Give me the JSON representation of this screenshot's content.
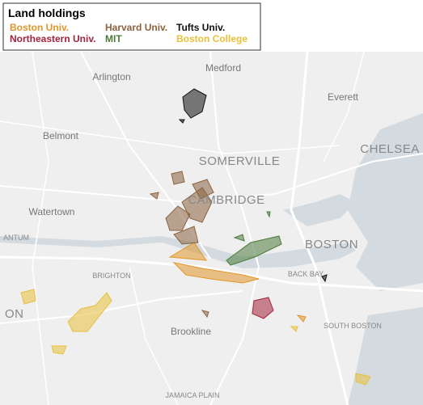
{
  "legend": {
    "title": "Land holdings",
    "items": [
      {
        "name": "Boston Univ.",
        "color": "#e0962a"
      },
      {
        "name": "Harvard Univ.",
        "color": "#8b6340"
      },
      {
        "name": "Tufts Univ.",
        "color": "#111111"
      },
      {
        "name": "Northeastern Univ.",
        "color": "#a3243b"
      },
      {
        "name": "MIT",
        "color": "#4d7a3c"
      },
      {
        "name": "Boston College",
        "color": "#e9c03a"
      }
    ]
  },
  "places": [
    "Medford",
    "Arlington",
    "Everett",
    "Belmont",
    "SOMERVILLE",
    "CHELSEA",
    "CAMBRIDGE",
    "Watertown",
    "BOSTON",
    "ANTUM",
    "BRIGHTON",
    "BACK BAY",
    "ON",
    "Brookline",
    "SOUTH BOSTON",
    "JAMAICA PLAIN"
  ]
}
